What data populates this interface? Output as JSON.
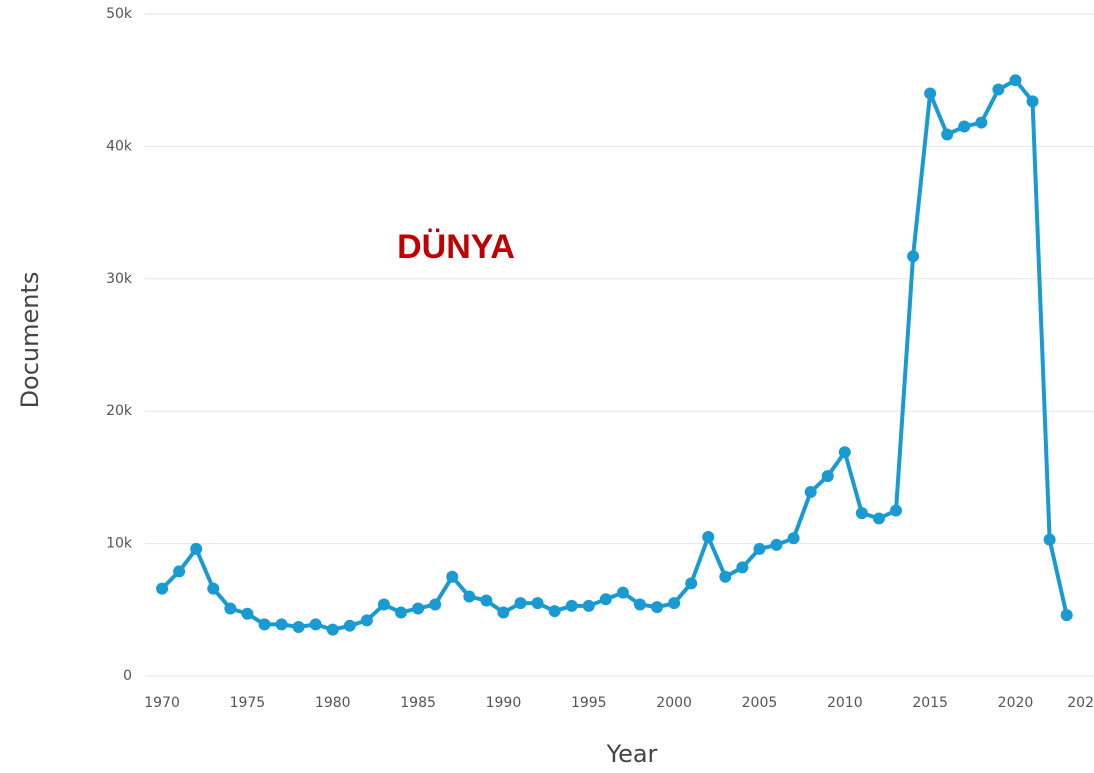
{
  "chart_data": {
    "type": "line",
    "annotation": "DÜNYA",
    "x_label": "Year",
    "y_label": "Documents",
    "x": [
      1970,
      1971,
      1972,
      1973,
      1974,
      1975,
      1976,
      1977,
      1978,
      1979,
      1980,
      1981,
      1982,
      1983,
      1984,
      1985,
      1986,
      1987,
      1988,
      1989,
      1990,
      1991,
      1992,
      1993,
      1994,
      1995,
      1996,
      1997,
      1998,
      1999,
      2000,
      2001,
      2002,
      2003,
      2004,
      2005,
      2006,
      2007,
      2008,
      2009,
      2010,
      2011,
      2012,
      2013,
      2014,
      2015,
      2016,
      2017,
      2018,
      2019,
      2020,
      2021,
      2022,
      2023
    ],
    "series": [
      {
        "name": "Documents",
        "color": "#1a9ad2",
        "values": [
          6600,
          7900,
          9600,
          6600,
          5100,
          4700,
          3900,
          3900,
          3700,
          3900,
          3500,
          3800,
          4200,
          5400,
          4800,
          5100,
          5400,
          7500,
          6000,
          5700,
          4800,
          5500,
          5500,
          4900,
          5300,
          5300,
          5800,
          6300,
          5400,
          5200,
          5500,
          7000,
          10500,
          7500,
          8200,
          9600,
          9900,
          10400,
          13900,
          15100,
          16900,
          12300,
          11900,
          12500,
          31700,
          44000,
          40900,
          41500,
          41800,
          44300,
          45000,
          43400,
          10300,
          4600
        ]
      }
    ],
    "xlim": [
      1969,
      2024.6
    ],
    "ylim": [
      0,
      50000
    ],
    "xticks": [
      1970,
      1975,
      1980,
      1985,
      1990,
      1995,
      2000,
      2005,
      2010,
      2015,
      2020,
      {
        "value": 2025,
        "label": "202"
      }
    ],
    "yticks": [
      0,
      {
        "value": 10000,
        "label": "10k"
      },
      {
        "value": 20000,
        "label": "20k"
      },
      {
        "value": 30000,
        "label": "30k"
      },
      {
        "value": 40000,
        "label": "40k"
      },
      {
        "value": 50000,
        "label": "50k"
      }
    ],
    "grid": true
  }
}
